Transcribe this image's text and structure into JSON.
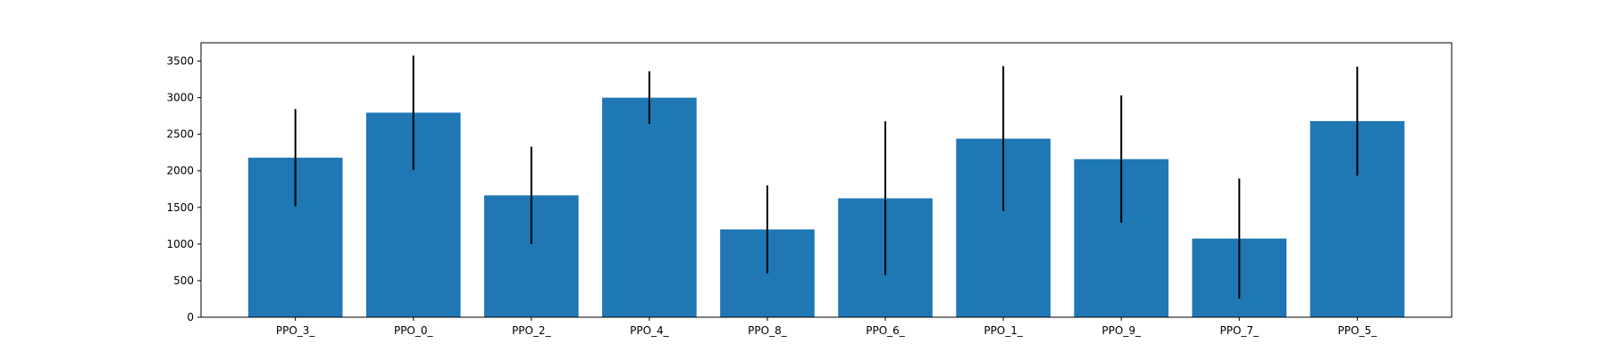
{
  "chart_data": {
    "type": "bar",
    "categories": [
      "PPO_3_",
      "PPO_0_",
      "PPO_2_",
      "PPO_4_",
      "PPO_8_",
      "PPO_6_",
      "PPO_1_",
      "PPO_9_",
      "PPO_7_",
      "PPO_5_"
    ],
    "values": [
      2180,
      2795,
      1665,
      3000,
      1200,
      1625,
      2440,
      2160,
      1075,
      2680
    ],
    "errors": [
      665,
      780,
      665,
      360,
      600,
      1050,
      990,
      870,
      820,
      745
    ],
    "ylim": [
      0,
      3750
    ],
    "yticks": [
      0,
      500,
      1000,
      1500,
      2000,
      2500,
      3000,
      3500
    ],
    "bar_color": "#1f77b4",
    "error_color": "#000000",
    "grid": false,
    "title": "",
    "xlabel": "",
    "ylabel": ""
  }
}
